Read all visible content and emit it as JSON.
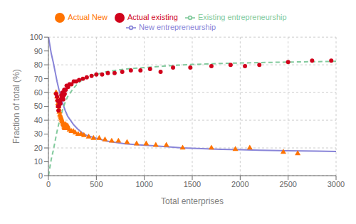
{
  "chart_data": {
    "type": "line",
    "xlabel": "Total enterprises",
    "ylabel": "Fraction of total (%)",
    "xlim": [
      0,
      3000
    ],
    "ylim": [
      0,
      100
    ],
    "xticks": [
      0,
      500,
      1000,
      1500,
      2000,
      2500,
      3000
    ],
    "yticks": [
      0,
      10,
      20,
      30,
      40,
      50,
      60,
      70,
      80,
      90,
      100
    ],
    "grid": true,
    "legend": "top",
    "series": [
      {
        "name": "New entrepreneurship",
        "type": "line",
        "line_style": "solid",
        "color": "#8884d8",
        "x": [
          1,
          30,
          50,
          70,
          90,
          110,
          130,
          150,
          175,
          200,
          230,
          260,
          300,
          350,
          400,
          450,
          500,
          600,
          700,
          800,
          900,
          1000,
          1100,
          1200,
          1400,
          1600,
          1800,
          2000,
          2200,
          2500,
          2800,
          3000
        ],
        "values": [
          100,
          88,
          82,
          75,
          68,
          62,
          57,
          52,
          47,
          43,
          40,
          37,
          34,
          31,
          29,
          28,
          27,
          25,
          24,
          23,
          22.5,
          22,
          21.5,
          21,
          20,
          19.5,
          19,
          18.7,
          18.4,
          18,
          17.7,
          17.5
        ]
      },
      {
        "name": "Existing entrepreneurship",
        "type": "line",
        "line_style": "dashed",
        "color": "#82ca9d",
        "x": [
          1,
          30,
          50,
          70,
          90,
          110,
          130,
          150,
          175,
          200,
          230,
          260,
          300,
          350,
          400,
          450,
          500,
          600,
          700,
          800,
          900,
          1000,
          1100,
          1200,
          1400,
          1600,
          1800,
          2000,
          2200,
          2500,
          2800,
          3000
        ],
        "values": [
          0,
          12,
          18,
          25,
          32,
          38,
          43,
          48,
          53,
          57,
          60,
          63,
          66,
          69,
          71,
          72,
          73,
          75,
          76,
          77,
          77.5,
          78,
          78.5,
          79,
          80,
          80.5,
          81,
          81.3,
          81.6,
          82,
          82.3,
          82.5
        ]
      },
      {
        "name": "Actual New",
        "type": "scatter",
        "marker": "triangle",
        "color": "#ff7300",
        "x": [
          80,
          90,
          95,
          100,
          105,
          110,
          115,
          120,
          125,
          130,
          135,
          140,
          145,
          150,
          155,
          160,
          165,
          170,
          175,
          180,
          190,
          200,
          210,
          220,
          240,
          260,
          280,
          310,
          340,
          370,
          420,
          470,
          530,
          590,
          660,
          730,
          820,
          920,
          1020,
          1120,
          1230,
          1400,
          1700,
          1950,
          2100,
          2450,
          2600
        ],
        "values": [
          60,
          57,
          55,
          52,
          50,
          48,
          46,
          44,
          43,
          42,
          41,
          40,
          39,
          38,
          37,
          36,
          35,
          34,
          35,
          37,
          35,
          36,
          34,
          33,
          32,
          32,
          31,
          30,
          30,
          29,
          28,
          27,
          27,
          26,
          25,
          25,
          24,
          23,
          23,
          22,
          22,
          20,
          20,
          19,
          20,
          17,
          16
        ]
      },
      {
        "name": "Actual existing",
        "type": "scatter",
        "marker": "circle",
        "color": "#d0021b",
        "x": [
          80,
          90,
          95,
          100,
          105,
          110,
          115,
          120,
          125,
          130,
          135,
          140,
          145,
          150,
          155,
          160,
          165,
          170,
          180,
          190,
          205,
          220,
          240,
          265,
          290,
          320,
          360,
          400,
          450,
          500,
          560,
          620,
          690,
          770,
          860,
          960,
          1060,
          1170,
          1300,
          1480,
          1700,
          1900,
          2050,
          2200,
          2500,
          2750,
          2950
        ],
        "values": [
          59,
          57,
          54,
          50,
          47,
          50,
          52,
          54,
          52,
          55,
          58,
          56,
          60,
          57,
          55,
          58,
          62,
          59,
          62,
          65,
          64,
          66,
          66,
          68,
          68,
          69,
          70,
          71,
          72,
          73,
          73,
          74,
          74,
          75,
          76,
          76,
          77,
          75,
          78,
          78,
          79,
          80,
          79,
          80,
          82,
          83,
          83
        ]
      }
    ]
  }
}
